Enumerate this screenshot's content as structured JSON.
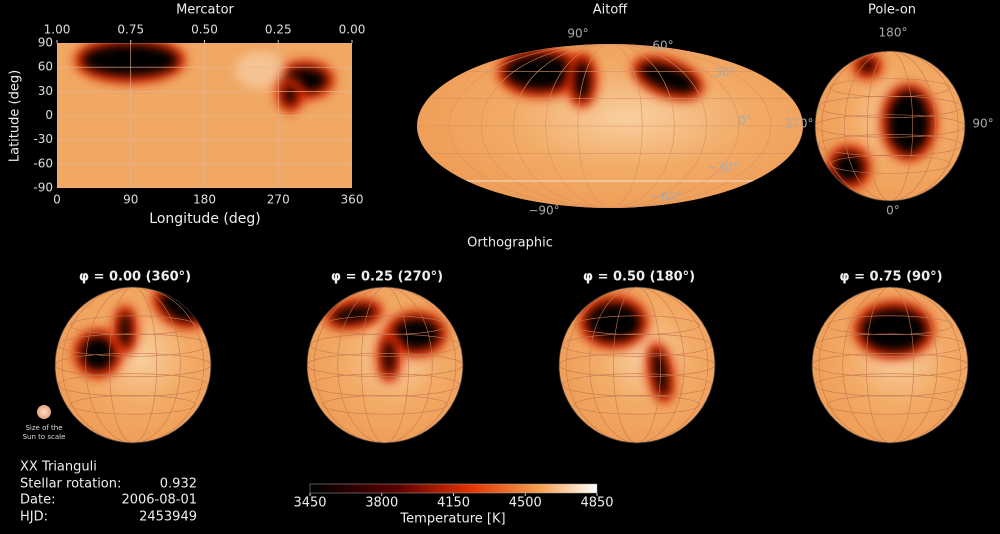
{
  "mercator": {
    "title": "Mercator",
    "top_lim": [
      1,
      0
    ],
    "top_ticks": [
      {
        "value": 1,
        "label": "1.00"
      },
      {
        "value": 0.75,
        "label": "0.75"
      },
      {
        "value": 0.5,
        "label": "0.50"
      },
      {
        "value": 0.25,
        "label": "0.25"
      },
      {
        "value": 0,
        "label": "0.00"
      }
    ],
    "xlim": [
      0,
      360
    ],
    "xticks": [
      0,
      90,
      180,
      270,
      360
    ],
    "ylim": [
      -90,
      90
    ],
    "yticks": [
      -90,
      -60,
      -30,
      0,
      30,
      60,
      90
    ],
    "xlabel": "Longitude (deg)",
    "ylabel": "Latitude (deg)"
  },
  "aitoff": {
    "title": "Aitoff",
    "labels": [
      "90°",
      "60°",
      "30°",
      "0°",
      "−30°",
      "−60°",
      "−90°"
    ]
  },
  "pole_on": {
    "title": "Pole-on",
    "labels": [
      "180°",
      "90°",
      "0°",
      "270°"
    ]
  },
  "orthographic": {
    "title": "Orthographic",
    "views": [
      "φ = 0.00 (360°)",
      "φ = 0.25 (270°)",
      "φ = 0.50 (180°)",
      "φ =  0.75 (90°)"
    ]
  },
  "sun_label": [
    "Size of the",
    "Sun to scale"
  ],
  "info": {
    "star": "XX Trianguli",
    "rows": [
      [
        "Stellar rotation:",
        0.932
      ],
      [
        "Date:",
        "2006-08-01"
      ],
      [
        "HJD:",
        2453949
      ]
    ]
  },
  "colorbar": {
    "label": "Temperature [K]",
    "lim": [
      3450,
      4850
    ],
    "ticks": [
      3450,
      3800,
      4150,
      4500,
      4850
    ]
  }
}
